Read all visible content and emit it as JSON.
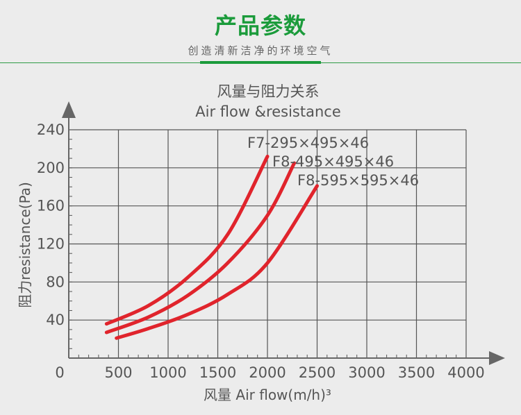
{
  "header": {
    "title": "产品参数",
    "subtitle": "创造清新洁净的环境空气"
  },
  "colors": {
    "accent": "#1b9b3b",
    "curve": "#e0242c",
    "grid": "#555555",
    "axis": "#666666"
  },
  "chart_data": {
    "type": "line",
    "title": "风量与阻力关系",
    "subtitle": "Air flow &resistance",
    "xlabel": "风量 Air flow(m/h)³",
    "ylabel": "阻力resistance(Pa)",
    "xlim": [
      0,
      4000
    ],
    "ylim": [
      0,
      240
    ],
    "xticks": [
      "0",
      "500",
      "1000",
      "1500",
      "2000",
      "2500",
      "3000",
      "3500",
      "4000"
    ],
    "yticks": [
      "40",
      "80",
      "120",
      "160",
      "200",
      "240"
    ],
    "grid": true,
    "series": [
      {
        "name": "F7-295×495×46",
        "x": [
          380,
          800,
          1200,
          1600,
          2000
        ],
        "y": [
          36,
          55,
          85,
          130,
          212
        ]
      },
      {
        "name": "F8-495×495×46",
        "x": [
          380,
          800,
          1200,
          1600,
          2000,
          2270
        ],
        "y": [
          27,
          43,
          66,
          100,
          150,
          205
        ]
      },
      {
        "name": "F8-595×595×46",
        "x": [
          480,
          800,
          1200,
          1600,
          2000,
          2500
        ],
        "y": [
          21,
          31,
          46,
          67,
          100,
          181
        ]
      }
    ]
  }
}
